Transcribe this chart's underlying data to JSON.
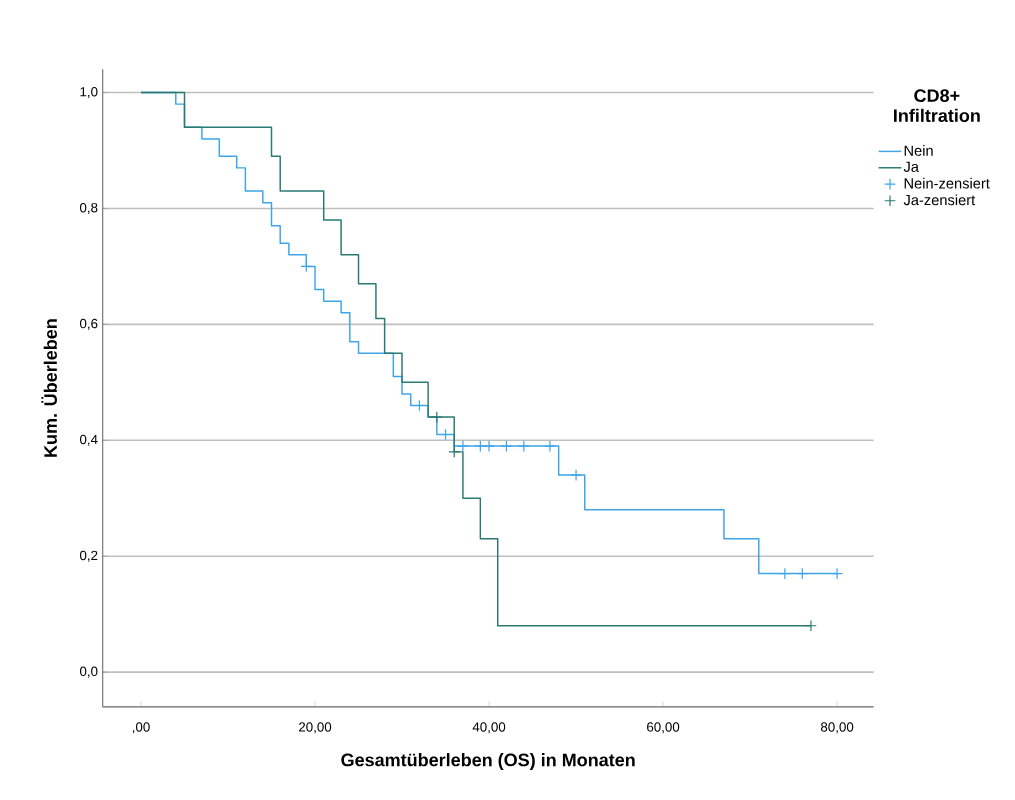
{
  "chart_data": {
    "type": "step",
    "xlabel": "Gesamtüberleben (OS) in Monaten",
    "ylabel": "Kum. Überleben",
    "legend_title": "CD8+ Infiltration",
    "xlim": [
      -4.4,
      84.2
    ],
    "ylim": [
      -0.06,
      1.04
    ],
    "xticks": [
      {
        "value": 0,
        "label": ",00"
      },
      {
        "value": 20,
        "label": "20,00"
      },
      {
        "value": 40,
        "label": "40,00"
      },
      {
        "value": 60,
        "label": "60,00"
      },
      {
        "value": 80,
        "label": "80,00"
      }
    ],
    "yticks": [
      {
        "value": 0,
        "label": "0,0"
      },
      {
        "value": 0.2,
        "label": "0,2"
      },
      {
        "value": 0.4,
        "label": "0,4"
      },
      {
        "value": 0.6,
        "label": "0,6"
      },
      {
        "value": 0.8,
        "label": "0,8"
      },
      {
        "value": 1.0,
        "label": "1,0"
      }
    ],
    "grid": "y",
    "legend": "top right",
    "series": [
      {
        "name": "Nein",
        "color": "#3da5e8",
        "x": [
          0,
          4,
          5,
          7,
          9,
          11,
          12,
          14,
          15,
          16,
          17,
          19,
          20,
          21,
          23,
          24,
          25,
          29,
          30,
          31,
          33,
          34,
          36,
          48,
          51,
          67,
          71,
          80
        ],
        "values": [
          1.0,
          0.98,
          0.94,
          0.92,
          0.89,
          0.87,
          0.83,
          0.81,
          0.77,
          0.74,
          0.72,
          0.7,
          0.66,
          0.64,
          0.62,
          0.57,
          0.55,
          0.51,
          0.48,
          0.46,
          0.44,
          0.41,
          0.39,
          0.34,
          0.28,
          0.23,
          0.17,
          0.17
        ]
      },
      {
        "name": "Ja",
        "color": "#2a7a73",
        "x": [
          0,
          5,
          15,
          16,
          21,
          23,
          25,
          27,
          28,
          30,
          33,
          36,
          37,
          39,
          41,
          77
        ],
        "values": [
          1.0,
          0.94,
          0.89,
          0.83,
          0.78,
          0.72,
          0.67,
          0.61,
          0.55,
          0.5,
          0.44,
          0.38,
          0.3,
          0.23,
          0.08,
          0.08
        ]
      },
      {
        "name": "Nein-zensiert",
        "type": "scatter",
        "marker": "cross",
        "color": "#3da5e8",
        "x": [
          19,
          32,
          35,
          37,
          39,
          40,
          42,
          44,
          47,
          50,
          74,
          76,
          80
        ],
        "values": [
          0.7,
          0.46,
          0.41,
          0.39,
          0.39,
          0.39,
          0.39,
          0.39,
          0.39,
          0.34,
          0.17,
          0.17,
          0.17
        ]
      },
      {
        "name": "Ja-zensiert",
        "type": "scatter",
        "marker": "cross",
        "color": "#2a7a73",
        "x": [
          34,
          36,
          77
        ],
        "values": [
          0.44,
          0.38,
          0.08
        ]
      }
    ]
  }
}
